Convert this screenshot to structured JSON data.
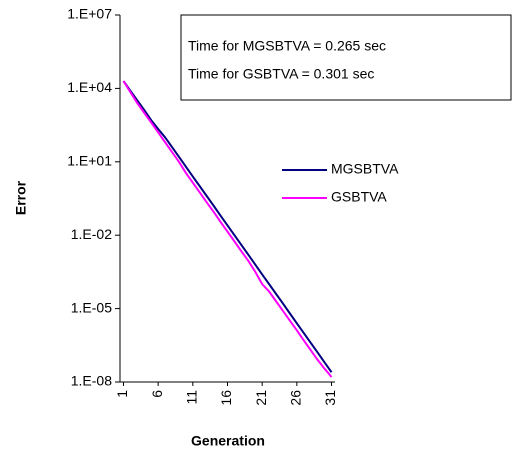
{
  "chart_data": {
    "type": "line",
    "y_label": "Error",
    "x_label": "Generation",
    "annotations": [
      "Time for MGSBTVA = 0.265 sec",
      "Time for GSBTVA = 0.301 sec"
    ],
    "categories": [
      "1",
      null,
      null,
      null,
      null,
      "6",
      null,
      null,
      null,
      null,
      "11",
      null,
      null,
      null,
      null,
      "16",
      null,
      null,
      null,
      null,
      "21",
      null,
      null,
      null,
      null,
      "26",
      null,
      null,
      null,
      null,
      "31"
    ],
    "series": [
      {
        "name": "MGSBTVA",
        "color": "#000080",
        "values": [
          20000.0,
          8000.0,
          3200.0,
          1300.0,
          500,
          220,
          100,
          40,
          16,
          6.3,
          2.5,
          1,
          0.4,
          0.16,
          0.063,
          0.025,
          0.01,
          0.004,
          0.0016,
          0.00063,
          0.00025,
          0.0001,
          4e-05,
          1.6e-05,
          6.3e-06,
          2.5e-06,
          1e-06,
          4e-07,
          1.6e-07,
          6.3e-08,
          2.5e-08
        ]
      },
      {
        "name": "GSBTVA",
        "color": "#ff00ff",
        "values": [
          20000.0,
          7000.0,
          2500.0,
          1000.0,
          400,
          160,
          63,
          25,
          10,
          3.5,
          1.4,
          0.56,
          0.22,
          0.09,
          0.035,
          0.014,
          0.0056,
          0.0022,
          0.0009,
          0.00032,
          0.0001,
          5e-05,
          2e-05,
          8e-06,
          3.2e-06,
          1.3e-06,
          5e-07,
          2e-07,
          8e-08,
          3.5e-08,
          1.6e-08
        ]
      }
    ],
    "log_y": true,
    "ylim": [
      1e-08,
      10000000.0
    ],
    "yticks": [
      {
        "value": 10000000.0,
        "label": "1.E+07"
      },
      {
        "value": 10000.0,
        "label": "1.E+04"
      },
      {
        "value": 10,
        "label": "1.E+01"
      },
      {
        "value": 0.01,
        "label": "1.E-02"
      },
      {
        "value": 1e-05,
        "label": "1.E-05"
      },
      {
        "value": 1e-08,
        "label": "1.E-08"
      }
    ],
    "grid": false
  }
}
